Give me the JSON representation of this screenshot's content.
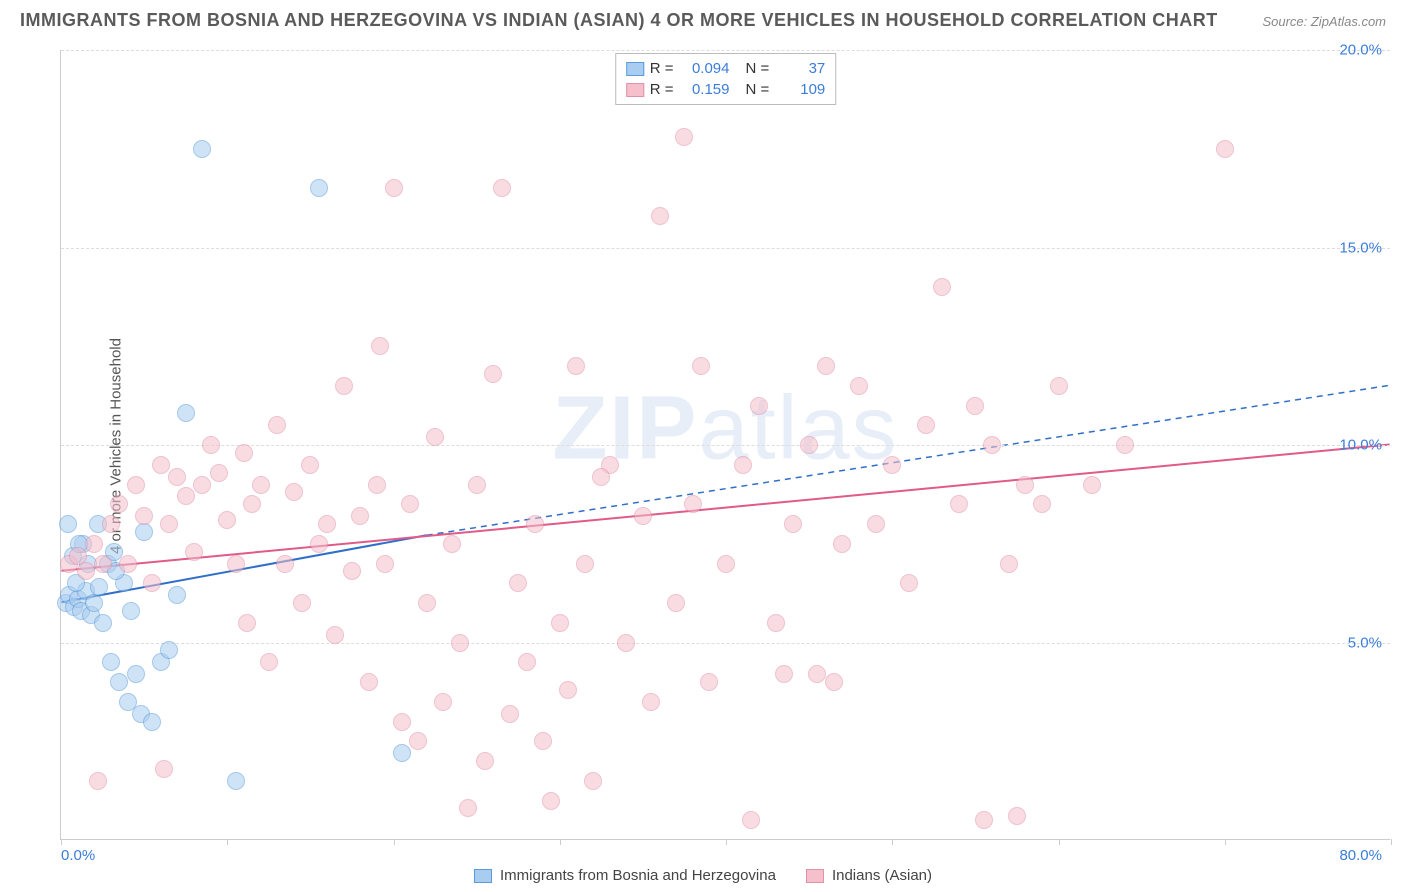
{
  "title": "IMMIGRANTS FROM BOSNIA AND HERZEGOVINA VS INDIAN (ASIAN) 4 OR MORE VEHICLES IN HOUSEHOLD CORRELATION CHART",
  "source": "Source: ZipAtlas.com",
  "ylabel": "4 or more Vehicles in Household",
  "watermark_a": "ZIP",
  "watermark_b": "atlas",
  "chart": {
    "type": "scatter",
    "xlim": [
      0,
      80
    ],
    "ylim": [
      0,
      20
    ],
    "xtick_positions": [
      0,
      10,
      20,
      30,
      40,
      50,
      60,
      70,
      80
    ],
    "ytick_positions": [
      5,
      10,
      15,
      20
    ],
    "ytick_labels": [
      "5.0%",
      "10.0%",
      "15.0%",
      "20.0%"
    ],
    "xtick_label_left": "0.0%",
    "xtick_label_right": "80.0%",
    "background_color": "#ffffff",
    "grid_color": "#dddddd",
    "axis_color": "#cccccc",
    "tick_label_color": "#3b7dd8",
    "point_radius": 9,
    "point_opacity": 0.55,
    "series": [
      {
        "name": "Immigrants from Bosnia and Herzegovina",
        "color_fill": "#a9cdf0",
        "color_stroke": "#5a9bd8",
        "r_label": "R =",
        "r_value": "0.094",
        "n_label": "N =",
        "n_value": "37",
        "trend": {
          "x1": 0,
          "y1": 6.0,
          "x2": 22,
          "y2": 7.7,
          "dash_x2": 80,
          "dash_y2": 11.5,
          "stroke": "#2f6fc9",
          "width": 2
        },
        "points": [
          [
            0.3,
            6.0
          ],
          [
            0.5,
            6.2
          ],
          [
            0.8,
            5.9
          ],
          [
            1.0,
            6.1
          ],
          [
            1.2,
            5.8
          ],
          [
            1.5,
            6.3
          ],
          [
            1.8,
            5.7
          ],
          [
            2.0,
            6.0
          ],
          [
            2.2,
            8.0
          ],
          [
            2.5,
            5.5
          ],
          [
            2.8,
            7.0
          ],
          [
            3.0,
            4.5
          ],
          [
            3.2,
            7.3
          ],
          [
            3.5,
            4.0
          ],
          [
            3.8,
            6.5
          ],
          [
            4.0,
            3.5
          ],
          [
            4.2,
            5.8
          ],
          [
            4.5,
            4.2
          ],
          [
            4.8,
            3.2
          ],
          [
            5.0,
            7.8
          ],
          [
            5.5,
            3.0
          ],
          [
            6.0,
            4.5
          ],
          [
            6.5,
            4.8
          ],
          [
            7.0,
            6.2
          ],
          [
            7.5,
            10.8
          ],
          [
            1.3,
            7.5
          ],
          [
            0.7,
            7.2
          ],
          [
            1.6,
            7.0
          ],
          [
            2.3,
            6.4
          ],
          [
            3.3,
            6.8
          ],
          [
            8.5,
            17.5
          ],
          [
            15.5,
            16.5
          ],
          [
            10.5,
            1.5
          ],
          [
            20.5,
            2.2
          ],
          [
            1.1,
            7.5
          ],
          [
            0.4,
            8.0
          ],
          [
            0.9,
            6.5
          ]
        ]
      },
      {
        "name": "Indians (Asian)",
        "color_fill": "#f5c0cc",
        "color_stroke": "#e191a8",
        "r_label": "R =",
        "r_value": "0.159",
        "n_label": "N =",
        "n_value": "109",
        "trend": {
          "x1": 0,
          "y1": 6.8,
          "x2": 80,
          "y2": 10.0,
          "stroke": "#e05a8a",
          "width": 2
        },
        "points": [
          [
            0.5,
            7.0
          ],
          [
            1.0,
            7.2
          ],
          [
            1.5,
            6.8
          ],
          [
            2.0,
            7.5
          ],
          [
            2.5,
            7.0
          ],
          [
            3.0,
            8.0
          ],
          [
            3.5,
            8.5
          ],
          [
            4.0,
            7.0
          ],
          [
            4.5,
            9.0
          ],
          [
            5.0,
            8.2
          ],
          [
            5.5,
            6.5
          ],
          [
            6.0,
            9.5
          ],
          [
            6.5,
            8.0
          ],
          [
            7.0,
            9.2
          ],
          [
            7.5,
            8.7
          ],
          [
            8.0,
            7.3
          ],
          [
            8.5,
            9.0
          ],
          [
            9.0,
            10.0
          ],
          [
            9.5,
            9.3
          ],
          [
            10.0,
            8.1
          ],
          [
            10.5,
            7.0
          ],
          [
            11.0,
            9.8
          ],
          [
            11.5,
            8.5
          ],
          [
            12.0,
            9.0
          ],
          [
            12.5,
            4.5
          ],
          [
            13.0,
            10.5
          ],
          [
            13.5,
            7.0
          ],
          [
            14.0,
            8.8
          ],
          [
            14.5,
            6.0
          ],
          [
            15.0,
            9.5
          ],
          [
            15.5,
            7.5
          ],
          [
            16.0,
            8.0
          ],
          [
            16.5,
            5.2
          ],
          [
            17.0,
            11.5
          ],
          [
            17.5,
            6.8
          ],
          [
            18.0,
            8.2
          ],
          [
            18.5,
            4.0
          ],
          [
            19.0,
            9.0
          ],
          [
            19.5,
            7.0
          ],
          [
            20.0,
            16.5
          ],
          [
            20.5,
            3.0
          ],
          [
            21.0,
            8.5
          ],
          [
            21.5,
            2.5
          ],
          [
            22.0,
            6.0
          ],
          [
            22.5,
            10.2
          ],
          [
            23.0,
            3.5
          ],
          [
            23.5,
            7.5
          ],
          [
            24.0,
            5.0
          ],
          [
            24.5,
            0.8
          ],
          [
            25.0,
            9.0
          ],
          [
            25.5,
            2.0
          ],
          [
            26.0,
            11.8
          ],
          [
            26.5,
            16.5
          ],
          [
            27.0,
            3.2
          ],
          [
            27.5,
            6.5
          ],
          [
            28.0,
            4.5
          ],
          [
            28.5,
            8.0
          ],
          [
            29.0,
            2.5
          ],
          [
            29.5,
            1.0
          ],
          [
            30.0,
            5.5
          ],
          [
            30.5,
            3.8
          ],
          [
            31.0,
            12.0
          ],
          [
            31.5,
            7.0
          ],
          [
            32.0,
            1.5
          ],
          [
            33.0,
            9.5
          ],
          [
            34.0,
            5.0
          ],
          [
            35.0,
            8.2
          ],
          [
            35.5,
            3.5
          ],
          [
            36.0,
            15.8
          ],
          [
            37.0,
            6.0
          ],
          [
            37.5,
            17.8
          ],
          [
            38.0,
            8.5
          ],
          [
            38.5,
            12.0
          ],
          [
            39.0,
            4.0
          ],
          [
            40.0,
            7.0
          ],
          [
            41.0,
            9.5
          ],
          [
            41.5,
            0.5
          ],
          [
            42.0,
            11.0
          ],
          [
            43.0,
            5.5
          ],
          [
            44.0,
            8.0
          ],
          [
            45.0,
            10.0
          ],
          [
            46.0,
            12.0
          ],
          [
            46.5,
            4.0
          ],
          [
            47.0,
            7.5
          ],
          [
            48.0,
            11.5
          ],
          [
            49.0,
            8.0
          ],
          [
            50.0,
            9.5
          ],
          [
            51.0,
            6.5
          ],
          [
            52.0,
            10.5
          ],
          [
            53.0,
            14.0
          ],
          [
            54.0,
            8.5
          ],
          [
            55.0,
            11.0
          ],
          [
            56.0,
            10.0
          ],
          [
            57.0,
            7.0
          ],
          [
            57.5,
            0.6
          ],
          [
            58.0,
            9.0
          ],
          [
            59.0,
            8.5
          ],
          [
            60.0,
            11.5
          ],
          [
            62.0,
            9.0
          ],
          [
            64.0,
            10.0
          ],
          [
            55.5,
            0.5
          ],
          [
            45.5,
            4.2
          ],
          [
            70.0,
            17.5
          ],
          [
            2.2,
            1.5
          ],
          [
            6.2,
            1.8
          ],
          [
            11.2,
            5.5
          ],
          [
            19.2,
            12.5
          ],
          [
            43.5,
            4.2
          ],
          [
            32.5,
            9.2
          ]
        ]
      }
    ]
  },
  "bottom_legend": [
    {
      "label": "Immigrants from Bosnia and Herzegovina",
      "fill": "#a9cdf0",
      "stroke": "#5a9bd8"
    },
    {
      "label": "Indians (Asian)",
      "fill": "#f5c0cc",
      "stroke": "#e191a8"
    }
  ]
}
